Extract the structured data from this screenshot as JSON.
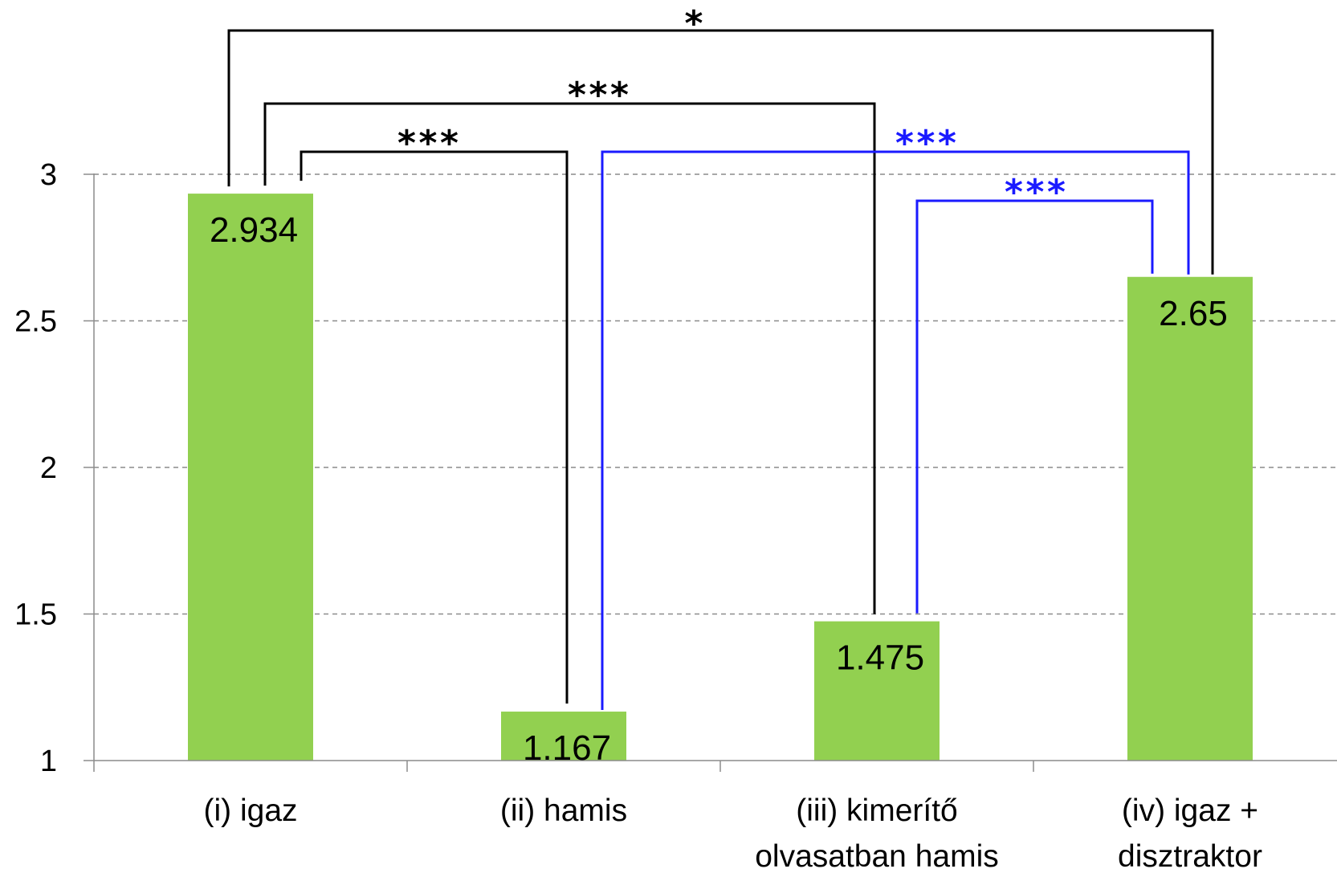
{
  "chart_data": {
    "type": "bar",
    "categories": [
      [
        "(i) igaz"
      ],
      [
        "(ii) hamis"
      ],
      [
        "(iii) kimerítő",
        "olvasatban hamis"
      ],
      [
        "(iv) igaz +",
        "disztraktor"
      ]
    ],
    "values": [
      2.934,
      1.167,
      1.475,
      2.65
    ],
    "data_labels": [
      "2.934",
      "1.167",
      "1.475",
      "2.65"
    ],
    "ylim": [
      1,
      3.5
    ],
    "yticks": [
      1,
      1.5,
      2,
      2.5,
      3
    ],
    "ytick_labels": [
      "1",
      "1.5",
      "2",
      "2.5",
      "3"
    ],
    "grid": "horizontal dashed",
    "title": "",
    "xlabel": "",
    "ylabel": "",
    "bar_color": "#92d050",
    "significance": [
      {
        "from": 0,
        "to": 1,
        "label": "***",
        "color": "#000000"
      },
      {
        "from": 0,
        "to": 2,
        "label": "***",
        "color": "#000000"
      },
      {
        "from": 0,
        "to": 3,
        "label": "*",
        "color": "#000000"
      },
      {
        "from": 1,
        "to": 3,
        "label": "***",
        "color": "#1a1aff"
      },
      {
        "from": 2,
        "to": 3,
        "label": "***",
        "color": "#1a1aff"
      }
    ]
  }
}
